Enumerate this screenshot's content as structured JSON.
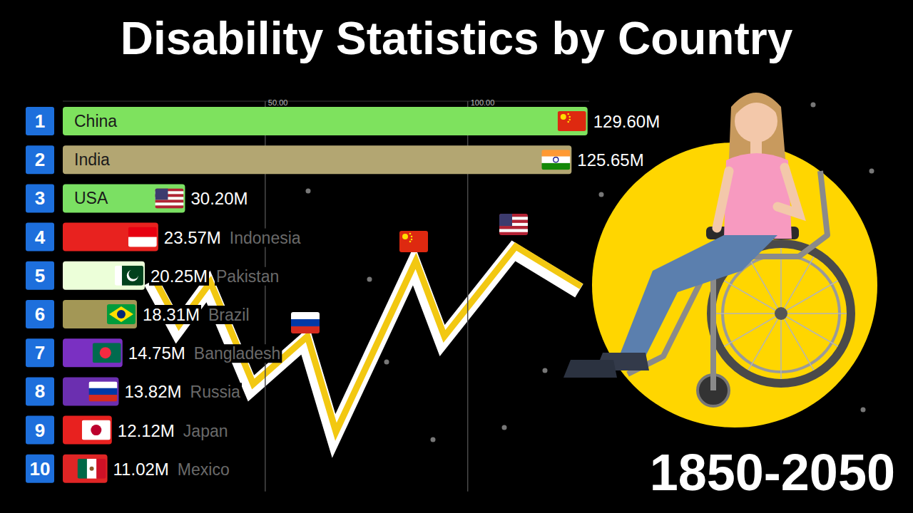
{
  "chart_data": {
    "type": "bar",
    "orientation": "horizontal",
    "title": "Disability Statistics by Country",
    "subtitle": "1850-2050",
    "categories": [
      "China",
      "India",
      "USA",
      "Indonesia",
      "Pakistan",
      "Brazil",
      "Bangladesh",
      "Russia",
      "Japan",
      "Mexico"
    ],
    "ranks": [
      1,
      2,
      3,
      4,
      5,
      6,
      7,
      8,
      9,
      10
    ],
    "values": [
      129.6,
      125.65,
      30.2,
      23.57,
      20.25,
      18.31,
      14.75,
      13.82,
      12.12,
      11.02
    ],
    "value_labels": [
      "129.60M",
      "125.65M",
      "30.20M",
      "23.57M",
      "20.25M",
      "18.31M",
      "14.75M",
      "13.82M",
      "12.12M",
      "11.02M"
    ],
    "colors": [
      "#7ee25e",
      "#b3a672",
      "#7be063",
      "#e8221f",
      "#ecffd9",
      "#a39756",
      "#7a30c2",
      "#6b2fb0",
      "#e8211f",
      "#e02525"
    ],
    "xlim": [
      0,
      130
    ],
    "xticks": [
      {
        "value": 50,
        "label": "50.00"
      },
      {
        "value": 100,
        "label": "100.00"
      }
    ],
    "grid": true,
    "data_labels": true
  }
}
